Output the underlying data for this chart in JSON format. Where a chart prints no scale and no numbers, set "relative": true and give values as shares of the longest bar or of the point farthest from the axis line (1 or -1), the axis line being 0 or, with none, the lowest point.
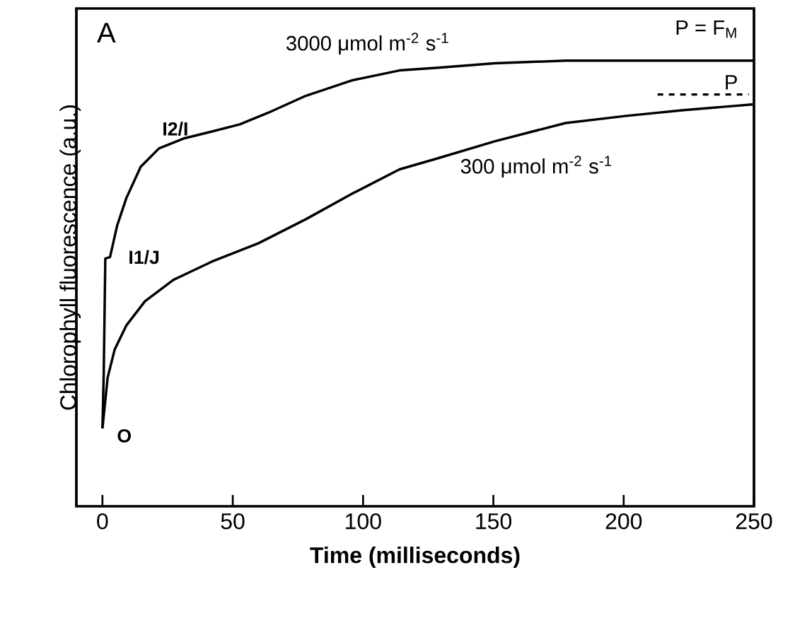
{
  "chart_data": {
    "type": "line",
    "relative": true,
    "xlabel": "Time (milliseconds)",
    "ylabel": "Chlorophyll fluorescence (a.u.)",
    "xlim": [
      -10,
      250
    ],
    "xticks": [
      0,
      50,
      100,
      150,
      200,
      250
    ],
    "series": [
      {
        "name": "3000 μmol m$^{-2}$ s$^{-1}$",
        "color": "#000000",
        "line_style": "solid",
        "x": [
          0,
          0.5,
          1.1,
          2.9,
          5.6,
          9.2,
          14.7,
          21.7,
          31,
          42,
          52.7,
          63.6,
          78,
          96,
          114,
          128.8,
          150.5,
          177.7,
          250
        ],
        "values": [
          0.175,
          0.3,
          0.556,
          0.559,
          0.629,
          0.692,
          0.762,
          0.803,
          0.825,
          0.841,
          0.857,
          0.883,
          0.921,
          0.956,
          0.978,
          0.984,
          0.994,
          1,
          1
        ]
      },
      {
        "name": "300 μmol m$^{-2}$ s$^{-1}$",
        "color": "#000000",
        "line_style": "solid",
        "x": [
          0,
          2,
          4.7,
          9.2,
          16.3,
          27.2,
          42,
          59.8,
          78,
          96,
          114,
          128.8,
          150.5,
          177.7,
          201,
          223,
          250
        ],
        "values": [
          0.175,
          0.289,
          0.352,
          0.406,
          0.46,
          0.508,
          0.549,
          0.59,
          0.644,
          0.702,
          0.756,
          0.781,
          0.819,
          0.86,
          0.876,
          0.889,
          0.902
        ]
      },
      {
        "name": "P",
        "color": "#000000",
        "line_style": "dashed",
        "x": [
          213,
          248
        ],
        "values": [
          0.924,
          0.924
        ]
      }
    ],
    "annotations": [
      "A",
      "P = F$_{M}$",
      {
        "text": "I2/I",
        "x": 21.7,
        "y": 0.803
      },
      {
        "text": "I1/J",
        "x": 2.9,
        "y": 0.559
      },
      {
        "text": "O",
        "x": 0,
        "y": 0.175
      }
    ]
  }
}
